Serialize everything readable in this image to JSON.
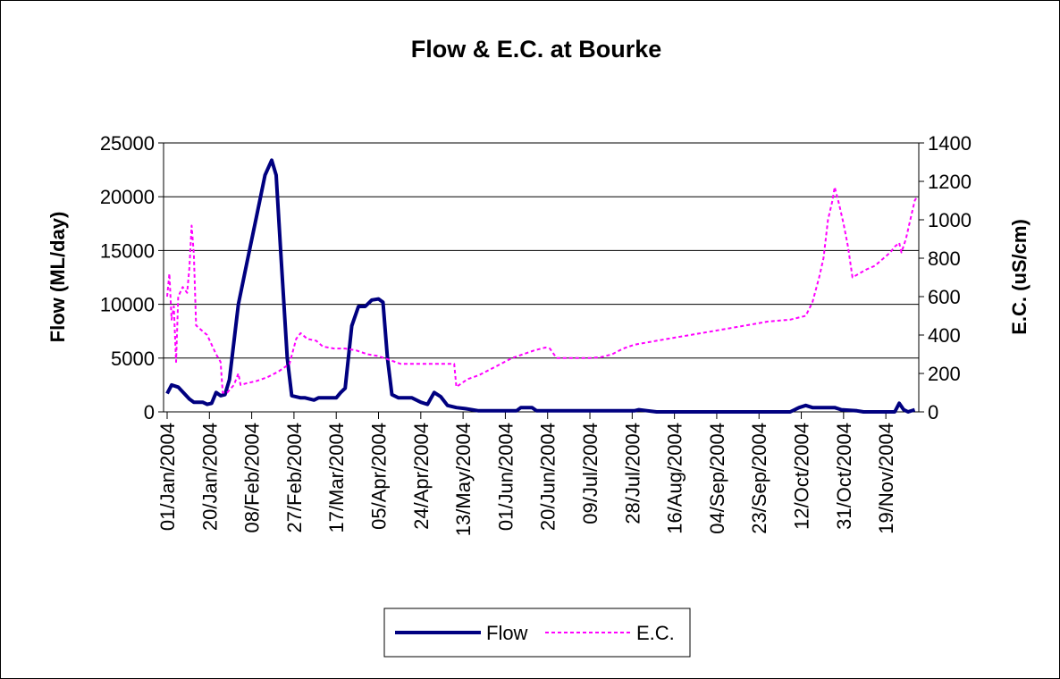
{
  "chart_data": {
    "type": "line",
    "title": "Flow & E.C. at Bourke",
    "y_label": "Flow (ML/day)",
    "y2_label": "E.C. (uS/cm)",
    "xlim": [
      "01/Jan/2004",
      "03/Dec/2004"
    ],
    "xticks": [
      "01/Jan/2004",
      "20/Jan/2004",
      "08/Feb/2004",
      "27/Feb/2004",
      "17/Mar/2004",
      "05/Apr/2004",
      "24/Apr/2004",
      "13/May/2004",
      "01/Jun/2004",
      "20/Jun/2004",
      "09/Jul/2004",
      "28/Jul/2004",
      "16/Aug/2004",
      "04/Sep/2004",
      "23/Sep/2004",
      "12/Oct/2004",
      "31/Oct/2004",
      "19/Nov/2004"
    ],
    "ylim": [
      0,
      25000
    ],
    "yticks": [
      0,
      5000,
      10000,
      15000,
      20000,
      25000
    ],
    "y2lim": [
      0,
      1400
    ],
    "y2ticks": [
      0,
      200,
      400,
      600,
      800,
      1000,
      1200,
      1400
    ],
    "grid": true,
    "legend": "bottom",
    "series": [
      {
        "name": "Flow",
        "color": "#000080",
        "axis": "y",
        "x": [
          "01/Jan/2004",
          "03/Jan/2004",
          "06/Jan/2004",
          "11/Jan/2004",
          "13/Jan/2004",
          "17/Jan/2004",
          "19/Jan/2004",
          "21/Jan/2004",
          "23/Jan/2004",
          "25/Jan/2004",
          "27/Jan/2004",
          "29/Jan/2004",
          "02/Feb/2004",
          "06/Feb/2004",
          "10/Feb/2004",
          "14/Feb/2004",
          "17/Feb/2004",
          "19/Feb/2004",
          "21/Feb/2004",
          "24/Feb/2004",
          "26/Feb/2004",
          "01/Mar/2004",
          "03/Mar/2004",
          "07/Mar/2004",
          "09/Mar/2004",
          "17/Mar/2004",
          "19/Mar/2004",
          "21/Mar/2004",
          "24/Mar/2004",
          "27/Mar/2004",
          "30/Mar/2004",
          "02/Apr/2004",
          "05/Apr/2004",
          "07/Apr/2004",
          "09/Apr/2004",
          "11/Apr/2004",
          "14/Apr/2004",
          "20/Apr/2004",
          "24/Apr/2004",
          "27/Apr/2004",
          "30/Apr/2004",
          "03/May/2004",
          "06/May/2004",
          "10/May/2004",
          "14/May/2004",
          "20/May/2004",
          "06/Jun/2004",
          "08/Jun/2004",
          "13/Jun/2004",
          "15/Jun/2004",
          "29/Jul/2004",
          "31/Jul/2004",
          "04/Aug/2004",
          "08/Aug/2004",
          "07/Oct/2004",
          "11/Oct/2004",
          "14/Oct/2004",
          "17/Oct/2004",
          "27/Oct/2004",
          "30/Oct/2004",
          "06/Nov/2004",
          "09/Nov/2004",
          "23/Nov/2004",
          "25/Nov/2004",
          "27/Nov/2004",
          "29/Nov/2004",
          "02/Dec/2004"
        ],
        "values": [
          1700,
          2500,
          2300,
          1200,
          900,
          900,
          700,
          800,
          1800,
          1500,
          1600,
          3000,
          10000,
          14000,
          18000,
          22000,
          23400,
          22000,
          15000,
          5000,
          1500,
          1300,
          1300,
          1100,
          1300,
          1300,
          1800,
          2200,
          8000,
          9800,
          9800,
          10400,
          10500,
          10200,
          5000,
          1600,
          1300,
          1300,
          900,
          700,
          1800,
          1400,
          600,
          400,
          300,
          100,
          100,
          400,
          400,
          100,
          100,
          200,
          100,
          0,
          0,
          400,
          600,
          400,
          400,
          200,
          100,
          0,
          0,
          800,
          200,
          0,
          200
        ]
      },
      {
        "name": "E.C.",
        "color": "#ff00ff",
        "axis": "y2",
        "x": [
          "01/Jan/2004",
          "02/Jan/2004",
          "03/Jan/2004",
          "04/Jan/2004",
          "05/Jan/2004",
          "06/Jan/2004",
          "08/Jan/2004",
          "10/Jan/2004",
          "11/Jan/2004",
          "12/Jan/2004",
          "13/Jan/2004",
          "14/Jan/2004",
          "16/Jan/2004",
          "19/Jan/2004",
          "21/Jan/2004",
          "23/Jan/2004",
          "25/Jan/2004",
          "26/Jan/2004",
          "28/Jan/2004",
          "31/Jan/2004",
          "02/Feb/2004",
          "03/Feb/2004",
          "06/Feb/2004",
          "10/Feb/2004",
          "15/Feb/2004",
          "20/Feb/2004",
          "25/Feb/2004",
          "28/Feb/2004",
          "01/Mar/2004",
          "04/Mar/2004",
          "08/Mar/2004",
          "11/Mar/2004",
          "16/Mar/2004",
          "21/Mar/2004",
          "26/Mar/2004",
          "31/Mar/2004",
          "05/Apr/2004",
          "10/Apr/2004",
          "15/Apr/2004",
          "30/Apr/2004",
          "09/May/2004",
          "10/May/2004",
          "15/May/2004",
          "20/May/2004",
          "25/May/2004",
          "30/May/2004",
          "04/Jun/2004",
          "09/Jun/2004",
          "14/Jun/2004",
          "19/Jun/2004",
          "21/Jun/2004",
          "24/Jun/2004",
          "09/Jul/2004",
          "14/Jul/2004",
          "19/Jul/2004",
          "24/Jul/2004",
          "29/Jul/2004",
          "08/Aug/2004",
          "18/Aug/2004",
          "28/Aug/2004",
          "07/Sep/2004",
          "17/Sep/2004",
          "27/Sep/2004",
          "07/Oct/2004",
          "14/Oct/2004",
          "17/Oct/2004",
          "20/Oct/2004",
          "22/Oct/2004",
          "24/Oct/2004",
          "26/Oct/2004",
          "27/Oct/2004",
          "29/Oct/2004",
          "31/Oct/2004",
          "02/Nov/2004",
          "04/Nov/2004",
          "07/Nov/2004",
          "10/Nov/2004",
          "14/Nov/2004",
          "18/Nov/2004",
          "21/Nov/2004",
          "23/Nov/2004",
          "25/Nov/2004",
          "26/Nov/2004",
          "28/Nov/2004",
          "30/Nov/2004",
          "02/Dec/2004",
          "03/Dec/2004"
        ],
        "values": [
          600,
          720,
          480,
          550,
          260,
          600,
          650,
          620,
          750,
          970,
          820,
          450,
          430,
          400,
          350,
          300,
          260,
          100,
          100,
          140,
          200,
          140,
          150,
          160,
          180,
          210,
          250,
          380,
          410,
          380,
          370,
          340,
          330,
          330,
          320,
          300,
          290,
          270,
          250,
          250,
          250,
          130,
          170,
          190,
          220,
          250,
          280,
          300,
          320,
          335,
          330,
          280,
          280,
          285,
          300,
          330,
          350,
          370,
          390,
          410,
          430,
          450,
          470,
          480,
          500,
          570,
          700,
          800,
          1000,
          1100,
          1170,
          1080,
          980,
          860,
          700,
          720,
          740,
          760,
          800,
          830,
          860,
          880,
          830,
          900,
          1000,
          1100,
          1120
        ]
      }
    ]
  }
}
